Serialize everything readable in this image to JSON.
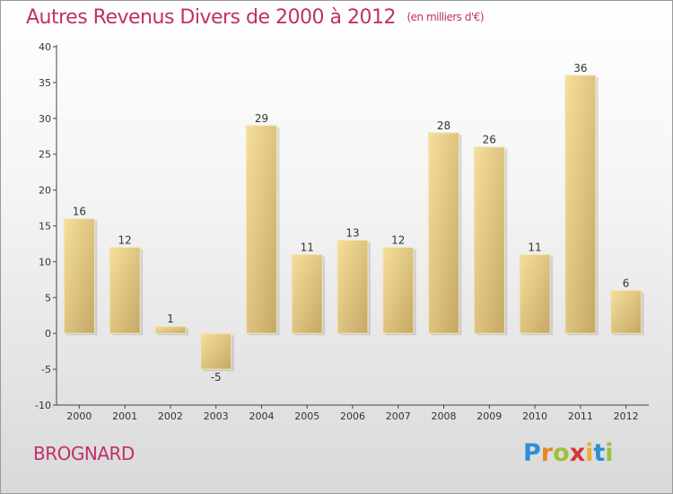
{
  "header": {
    "title": "Autres Revenus Divers de 2000 à 2012",
    "unit": "(en milliers d'€)"
  },
  "footer": {
    "commune": "BROGNARD",
    "brand_letters": [
      {
        "ch": "P",
        "color": "#2c8fd6"
      },
      {
        "ch": "r",
        "color": "#e8862a"
      },
      {
        "ch": "o",
        "color": "#9bc23c"
      },
      {
        "ch": "x",
        "color": "#d8343b"
      },
      {
        "ch": "i",
        "color": "#e8b02a"
      },
      {
        "ch": "t",
        "color": "#2c8fd6"
      },
      {
        "ch": "i",
        "color": "#9bc23c"
      }
    ]
  },
  "colors": {
    "title": "#c0306a",
    "bar_light": "#f6df9b",
    "bar_dark": "#c4a865",
    "axis": "#444444"
  },
  "chart_data": {
    "type": "bar",
    "title": "Autres Revenus Divers de 2000 à 2012",
    "subtitle": "(en milliers d'€)",
    "categories": [
      "2000",
      "2001",
      "2002",
      "2003",
      "2004",
      "2005",
      "2006",
      "2007",
      "2008",
      "2009",
      "2010",
      "2011",
      "2012"
    ],
    "values": [
      16,
      12,
      1,
      -5,
      29,
      11,
      13,
      12,
      28,
      26,
      11,
      36,
      6
    ],
    "data_labels": [
      "16",
      "12",
      "1",
      "-5",
      "29",
      "11",
      "13",
      "12",
      "28",
      "26",
      "11",
      "36",
      "6"
    ],
    "ylim": [
      -10,
      40
    ],
    "yticks": [
      "40",
      "35",
      "30",
      "25",
      "20",
      "15",
      "10",
      "5",
      "0",
      "-5",
      "-10"
    ],
    "ytick_values": [
      40,
      35,
      30,
      25,
      20,
      15,
      10,
      5,
      0,
      -5,
      -10
    ],
    "grid": false,
    "legend": "none"
  }
}
